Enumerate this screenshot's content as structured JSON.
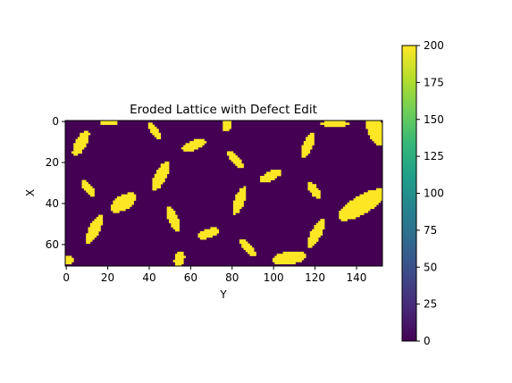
{
  "chart_data": {
    "type": "heatmap",
    "title": "Eroded Lattice with Defect Edit",
    "xlabel": "Y",
    "ylabel": "X",
    "rows": 71,
    "cols": 153,
    "background_value": 0,
    "feature_value": 200,
    "xlim": [
      0,
      153
    ],
    "ylim": [
      71,
      0
    ],
    "x_ticks": [
      0,
      20,
      40,
      60,
      80,
      100,
      120,
      140
    ],
    "y_ticks": [
      0,
      20,
      40,
      60
    ],
    "colorbar": {
      "min": 0,
      "max": 200,
      "ticks": [
        0,
        25,
        50,
        75,
        100,
        125,
        150,
        175,
        200
      ],
      "colormap": "viridis"
    },
    "colors": {
      "low": "#440154",
      "high": "#fde725"
    },
    "grains": [
      {
        "cy": 11,
        "cx": 7.5,
        "ry": 7,
        "rx": 2.6,
        "angle": 28
      },
      {
        "cy": 1,
        "cx": 21,
        "ry": 1.4,
        "rx": 4,
        "angle": 0
      },
      {
        "cy": 5,
        "cx": 43,
        "ry": 4.5,
        "rx": 1.8,
        "angle": -30
      },
      {
        "cy": 12,
        "cx": 62,
        "ry": 6,
        "rx": 2.2,
        "angle": 68
      },
      {
        "cy": 2,
        "cx": 78,
        "ry": 3.2,
        "rx": 2,
        "angle": 15
      },
      {
        "cy": 19,
        "cx": 82,
        "ry": 5.5,
        "rx": 1.8,
        "angle": -42
      },
      {
        "cy": 12,
        "cx": 117,
        "ry": 6.5,
        "rx": 2.2,
        "angle": 25
      },
      {
        "cy": 1.5,
        "cx": 130,
        "ry": 1.6,
        "rx": 7,
        "angle": 0
      },
      {
        "cy": 5,
        "cx": 150,
        "ry": 8,
        "rx": 4,
        "angle": -25
      },
      {
        "cy": 33,
        "cx": 11,
        "ry": 4.5,
        "rx": 2,
        "angle": -40
      },
      {
        "cy": 27,
        "cx": 46,
        "ry": 8,
        "rx": 2.8,
        "angle": 28
      },
      {
        "cy": 27,
        "cx": 99,
        "ry": 6,
        "rx": 2.2,
        "angle": 65
      },
      {
        "cy": 40,
        "cx": 28,
        "ry": 7,
        "rx": 3.5,
        "angle": 58
      },
      {
        "cy": 39,
        "cx": 84,
        "ry": 7,
        "rx": 2.4,
        "angle": 20
      },
      {
        "cy": 34,
        "cx": 120,
        "ry": 4.8,
        "rx": 2,
        "angle": -35
      },
      {
        "cy": 41,
        "cx": 143,
        "ry": 13,
        "rx": 4.5,
        "angle": 60
      },
      {
        "cy": 48,
        "cx": 52,
        "ry": 6.5,
        "rx": 2.3,
        "angle": -22
      },
      {
        "cy": 53,
        "cx": 14,
        "ry": 7.5,
        "rx": 2.6,
        "angle": 27
      },
      {
        "cy": 55,
        "cx": 121,
        "ry": 8,
        "rx": 2.5,
        "angle": 28
      },
      {
        "cy": 55,
        "cx": 69,
        "ry": 5.5,
        "rx": 2.2,
        "angle": 72
      },
      {
        "cy": 62,
        "cx": 88,
        "ry": 5.5,
        "rx": 2,
        "angle": -38
      },
      {
        "cy": 67,
        "cx": 108,
        "ry": 3,
        "rx": 8,
        "angle": -8
      },
      {
        "cy": 67.5,
        "cx": 55,
        "ry": 4,
        "rx": 2.4,
        "angle": 15
      },
      {
        "cy": 68,
        "cx": 1,
        "ry": 2.5,
        "rx": 3,
        "angle": 0
      }
    ]
  }
}
